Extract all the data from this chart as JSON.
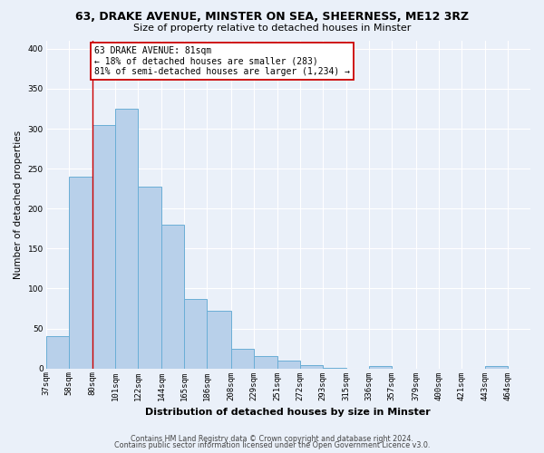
{
  "title": "63, DRAKE AVENUE, MINSTER ON SEA, SHEERNESS, ME12 3RZ",
  "subtitle": "Size of property relative to detached houses in Minster",
  "xlabel": "Distribution of detached houses by size in Minster",
  "ylabel": "Number of detached properties",
  "bin_labels": [
    "37sqm",
    "58sqm",
    "80sqm",
    "101sqm",
    "122sqm",
    "144sqm",
    "165sqm",
    "186sqm",
    "208sqm",
    "229sqm",
    "251sqm",
    "272sqm",
    "293sqm",
    "315sqm",
    "336sqm",
    "357sqm",
    "379sqm",
    "400sqm",
    "421sqm",
    "443sqm",
    "464sqm"
  ],
  "bin_edges": [
    37,
    58,
    80,
    101,
    122,
    144,
    165,
    186,
    208,
    229,
    251,
    272,
    293,
    315,
    336,
    357,
    379,
    400,
    421,
    443,
    464,
    485
  ],
  "bar_heights": [
    40,
    240,
    305,
    325,
    227,
    180,
    87,
    72,
    25,
    16,
    10,
    4,
    1,
    0,
    3,
    0,
    0,
    0,
    0,
    3,
    0
  ],
  "bar_color": "#b8d0ea",
  "bar_edge_color": "#6aaed6",
  "property_line_x": 80,
  "property_line_color": "#cc0000",
  "annotation_line1": "63 DRAKE AVENUE: 81sqm",
  "annotation_line2": "← 18% of detached houses are smaller (283)",
  "annotation_line3": "81% of semi-detached houses are larger (1,234) →",
  "annotation_box_color": "#ffffff",
  "annotation_box_edge_color": "#cc0000",
  "ylim": [
    0,
    410
  ],
  "yticks": [
    0,
    50,
    100,
    150,
    200,
    250,
    300,
    350,
    400
  ],
  "footer_line1": "Contains HM Land Registry data © Crown copyright and database right 2024.",
  "footer_line2": "Contains public sector information licensed under the Open Government Licence v3.0.",
  "background_color": "#eaf0f9",
  "plot_bg_color": "#eaf0f9",
  "grid_color": "#ffffff",
  "title_fontsize": 9,
  "subtitle_fontsize": 8,
  "ylabel_fontsize": 7.5,
  "xlabel_fontsize": 8,
  "tick_fontsize": 6.5,
  "annotation_fontsize": 7,
  "footer_fontsize": 5.8
}
